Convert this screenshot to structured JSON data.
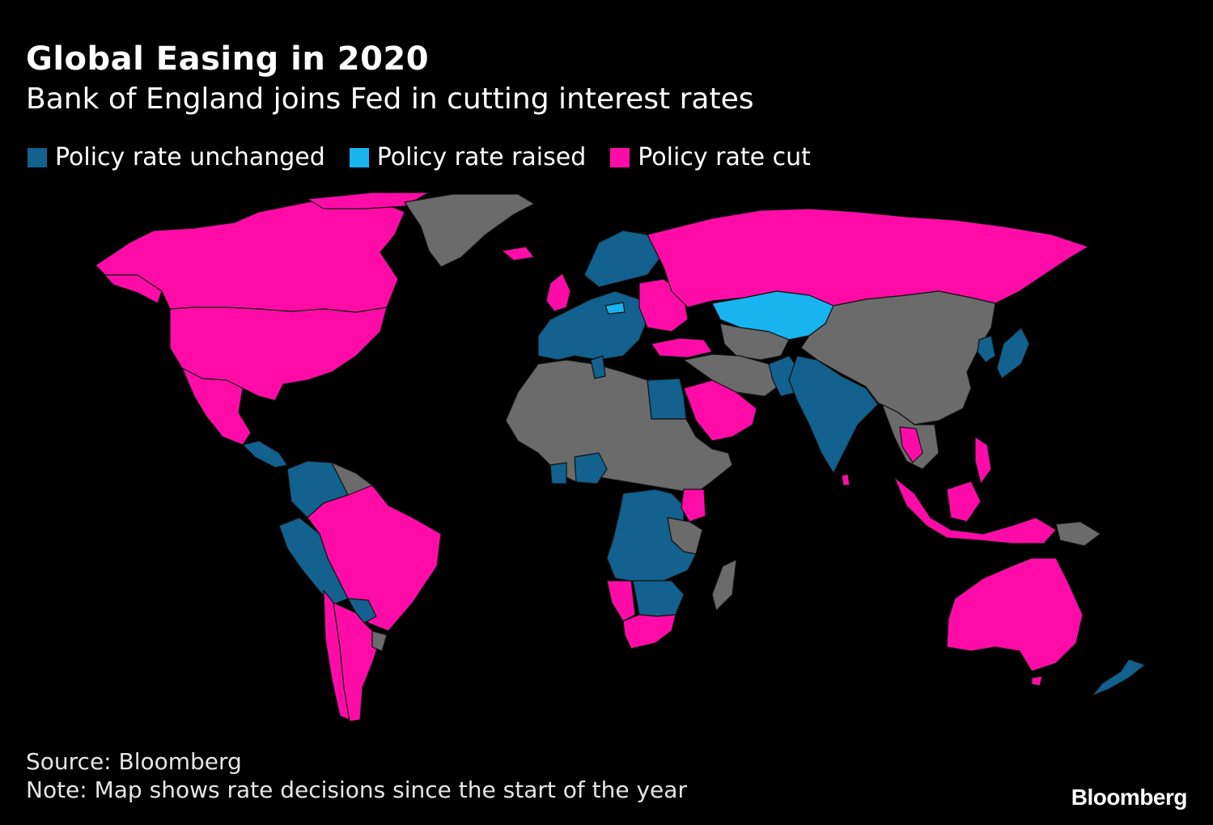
{
  "header": {
    "title": "Global Easing in 2020",
    "subtitle": "Bank of England joins Fed in cutting interest rates"
  },
  "legend": [
    {
      "label": "Policy rate unchanged",
      "color": "#12618f"
    },
    {
      "label": "Policy rate raised",
      "color": "#18b4f0"
    },
    {
      "label": "Policy rate cut",
      "color": "#ff0ca8"
    }
  ],
  "colors": {
    "unchanged": "#12618f",
    "raised": "#18b4f0",
    "cut": "#ff0ca8",
    "no_data": "#6b6b6b",
    "background": "#000000"
  },
  "footer": {
    "source": "Source: Bloomberg",
    "note": "Note: Map shows rate decisions since the start of the year",
    "logo": "Bloomberg"
  }
}
